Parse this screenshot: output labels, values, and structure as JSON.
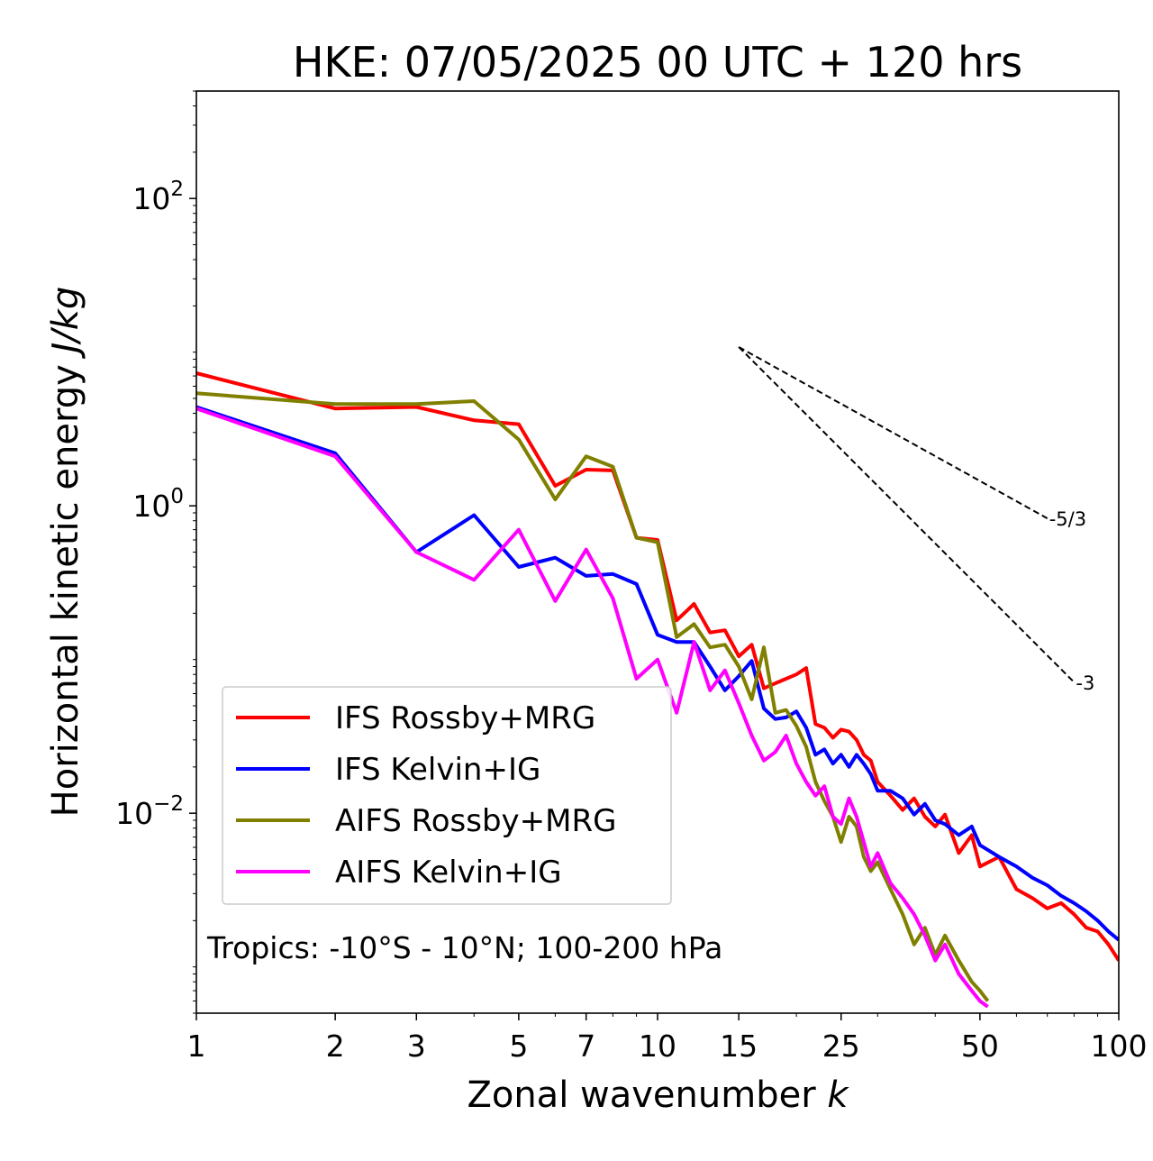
{
  "chart_data": {
    "type": "line",
    "title": "HKE: 07/05/2025 00 UTC + 120 hrs",
    "xlabel_main": "Zonal wavenumber ",
    "xlabel_var": "k",
    "ylabel_main": "Horizontal kinetic energy ",
    "ylabel_var": "J/kg",
    "x_scale": "log",
    "y_scale": "log",
    "xlim": [
      1,
      100
    ],
    "ylim": [
      0.0005,
      500
    ],
    "x_ticks": [
      {
        "value": 1,
        "label": "1"
      },
      {
        "value": 2,
        "label": "2"
      },
      {
        "value": 3,
        "label": "3"
      },
      {
        "value": 5,
        "label": "5"
      },
      {
        "value": 7,
        "label": "7"
      },
      {
        "value": 10,
        "label": "10"
      },
      {
        "value": 15,
        "label": "15"
      },
      {
        "value": 25,
        "label": "25"
      },
      {
        "value": 50,
        "label": "50"
      },
      {
        "value": 100,
        "label": "100"
      }
    ],
    "y_ticks": [
      {
        "value": 0.01,
        "base": "10",
        "exp": "−2"
      },
      {
        "value": 1,
        "base": "10",
        "exp": "0"
      },
      {
        "value": 100,
        "base": "10",
        "exp": "2"
      }
    ],
    "annotation": "Tropics: -10°S - 10°N; 100-200 hPa",
    "legend_position": "lower-left",
    "grid": false,
    "reference_lines": [
      {
        "label": "-5/3",
        "slope": -1.6667,
        "x0": 15,
        "y0": 10.8,
        "x1": 70
      },
      {
        "label": "-3",
        "slope": -3,
        "x0": 15,
        "y0": 10.8,
        "x1": 80
      }
    ],
    "series": [
      {
        "name": "IFS Rossby+MRG",
        "color": "#ff0000",
        "points": [
          [
            1,
            7.3
          ],
          [
            2,
            4.3
          ],
          [
            3,
            4.4
          ],
          [
            4,
            3.6
          ],
          [
            5,
            3.4
          ],
          [
            6,
            1.35
          ],
          [
            7,
            1.72
          ],
          [
            8,
            1.7
          ],
          [
            9,
            0.62
          ],
          [
            10,
            0.6
          ],
          [
            11,
            0.18
          ],
          [
            12,
            0.23
          ],
          [
            13,
            0.15
          ],
          [
            14,
            0.155
          ],
          [
            15,
            0.105
          ],
          [
            16,
            0.125
          ],
          [
            17,
            0.065
          ],
          [
            18,
            0.07
          ],
          [
            19,
            0.075
          ],
          [
            20,
            0.08
          ],
          [
            21,
            0.088
          ],
          [
            22,
            0.038
          ],
          [
            23,
            0.036
          ],
          [
            24,
            0.031
          ],
          [
            25,
            0.035
          ],
          [
            26,
            0.034
          ],
          [
            27,
            0.03
          ],
          [
            28,
            0.024
          ],
          [
            29,
            0.022
          ],
          [
            30,
            0.016
          ],
          [
            32,
            0.013
          ],
          [
            34,
            0.0105
          ],
          [
            36,
            0.0125
          ],
          [
            38,
            0.0095
          ],
          [
            40,
            0.0082
          ],
          [
            42,
            0.0098
          ],
          [
            45,
            0.0055
          ],
          [
            48,
            0.0072
          ],
          [
            50,
            0.0045
          ],
          [
            55,
            0.0052
          ],
          [
            60,
            0.0032
          ],
          [
            65,
            0.0028
          ],
          [
            70,
            0.0024
          ],
          [
            75,
            0.0026
          ],
          [
            80,
            0.0022
          ],
          [
            85,
            0.0018
          ],
          [
            90,
            0.0017
          ],
          [
            95,
            0.0014
          ],
          [
            100,
            0.0011
          ]
        ]
      },
      {
        "name": "IFS Kelvin+IG",
        "color": "#0000ff",
        "points": [
          [
            1,
            4.4
          ],
          [
            2,
            2.2
          ],
          [
            3,
            0.5
          ],
          [
            4,
            0.87
          ],
          [
            5,
            0.4
          ],
          [
            6,
            0.46
          ],
          [
            7,
            0.35
          ],
          [
            8,
            0.36
          ],
          [
            9,
            0.31
          ],
          [
            10,
            0.145
          ],
          [
            11,
            0.13
          ],
          [
            12,
            0.13
          ],
          [
            13,
            0.09
          ],
          [
            14,
            0.063
          ],
          [
            15,
            0.078
          ],
          [
            16,
            0.098
          ],
          [
            17,
            0.048
          ],
          [
            18,
            0.041
          ],
          [
            19,
            0.042
          ],
          [
            20,
            0.046
          ],
          [
            21,
            0.036
          ],
          [
            22,
            0.024
          ],
          [
            23,
            0.026
          ],
          [
            24,
            0.021
          ],
          [
            25,
            0.024
          ],
          [
            26,
            0.02
          ],
          [
            27,
            0.024
          ],
          [
            28,
            0.021
          ],
          [
            29,
            0.018
          ],
          [
            30,
            0.014
          ],
          [
            32,
            0.014
          ],
          [
            34,
            0.0125
          ],
          [
            36,
            0.0098
          ],
          [
            38,
            0.0115
          ],
          [
            40,
            0.009
          ],
          [
            42,
            0.0085
          ],
          [
            45,
            0.0072
          ],
          [
            48,
            0.0082
          ],
          [
            50,
            0.0062
          ],
          [
            55,
            0.0052
          ],
          [
            60,
            0.0045
          ],
          [
            65,
            0.0038
          ],
          [
            70,
            0.0034
          ],
          [
            75,
            0.0029
          ],
          [
            80,
            0.0026
          ],
          [
            85,
            0.0023
          ],
          [
            90,
            0.002
          ],
          [
            95,
            0.0017
          ],
          [
            100,
            0.0015
          ]
        ]
      },
      {
        "name": "AIFS Rossby+MRG",
        "color": "#808000",
        "points": [
          [
            1,
            5.4
          ],
          [
            2,
            4.6
          ],
          [
            3,
            4.6
          ],
          [
            4,
            4.8
          ],
          [
            5,
            2.7
          ],
          [
            6,
            1.1
          ],
          [
            7,
            2.1
          ],
          [
            8,
            1.8
          ],
          [
            9,
            0.62
          ],
          [
            10,
            0.58
          ],
          [
            11,
            0.14
          ],
          [
            12,
            0.17
          ],
          [
            13,
            0.12
          ],
          [
            14,
            0.125
          ],
          [
            15,
            0.09
          ],
          [
            16,
            0.055
          ],
          [
            17,
            0.12
          ],
          [
            18,
            0.045
          ],
          [
            19,
            0.047
          ],
          [
            20,
            0.037
          ],
          [
            21,
            0.027
          ],
          [
            22,
            0.016
          ],
          [
            23,
            0.012
          ],
          [
            24,
            0.0095
          ],
          [
            25,
            0.0065
          ],
          [
            26,
            0.0095
          ],
          [
            27,
            0.0082
          ],
          [
            28,
            0.0052
          ],
          [
            29,
            0.0042
          ],
          [
            30,
            0.0048
          ],
          [
            32,
            0.0032
          ],
          [
            34,
            0.0022
          ],
          [
            36,
            0.0014
          ],
          [
            38,
            0.0018
          ],
          [
            40,
            0.0012
          ],
          [
            42,
            0.0016
          ],
          [
            45,
            0.0011
          ],
          [
            48,
            0.0008
          ],
          [
            50,
            0.0007
          ],
          [
            52,
            0.0006
          ]
        ]
      },
      {
        "name": "AIFS Kelvin+IG",
        "color": "#ff00ff",
        "points": [
          [
            1,
            4.3
          ],
          [
            2,
            2.1
          ],
          [
            3,
            0.5
          ],
          [
            4,
            0.33
          ],
          [
            5,
            0.7
          ],
          [
            6,
            0.24
          ],
          [
            7,
            0.52
          ],
          [
            8,
            0.25
          ],
          [
            9,
            0.075
          ],
          [
            10,
            0.1
          ],
          [
            11,
            0.045
          ],
          [
            12,
            0.13
          ],
          [
            13,
            0.063
          ],
          [
            14,
            0.085
          ],
          [
            15,
            0.052
          ],
          [
            16,
            0.032
          ],
          [
            17,
            0.022
          ],
          [
            18,
            0.025
          ],
          [
            19,
            0.032
          ],
          [
            20,
            0.021
          ],
          [
            21,
            0.016
          ],
          [
            22,
            0.013
          ],
          [
            23,
            0.015
          ],
          [
            24,
            0.0095
          ],
          [
            25,
            0.0085
          ],
          [
            26,
            0.0125
          ],
          [
            27,
            0.0095
          ],
          [
            28,
            0.0065
          ],
          [
            29,
            0.0045
          ],
          [
            30,
            0.0055
          ],
          [
            32,
            0.0035
          ],
          [
            34,
            0.0028
          ],
          [
            36,
            0.0022
          ],
          [
            38,
            0.0016
          ],
          [
            40,
            0.0011
          ],
          [
            42,
            0.0014
          ],
          [
            45,
            0.0009
          ],
          [
            48,
            0.0007
          ],
          [
            50,
            0.0006
          ],
          [
            52,
            0.00055
          ]
        ]
      }
    ]
  }
}
